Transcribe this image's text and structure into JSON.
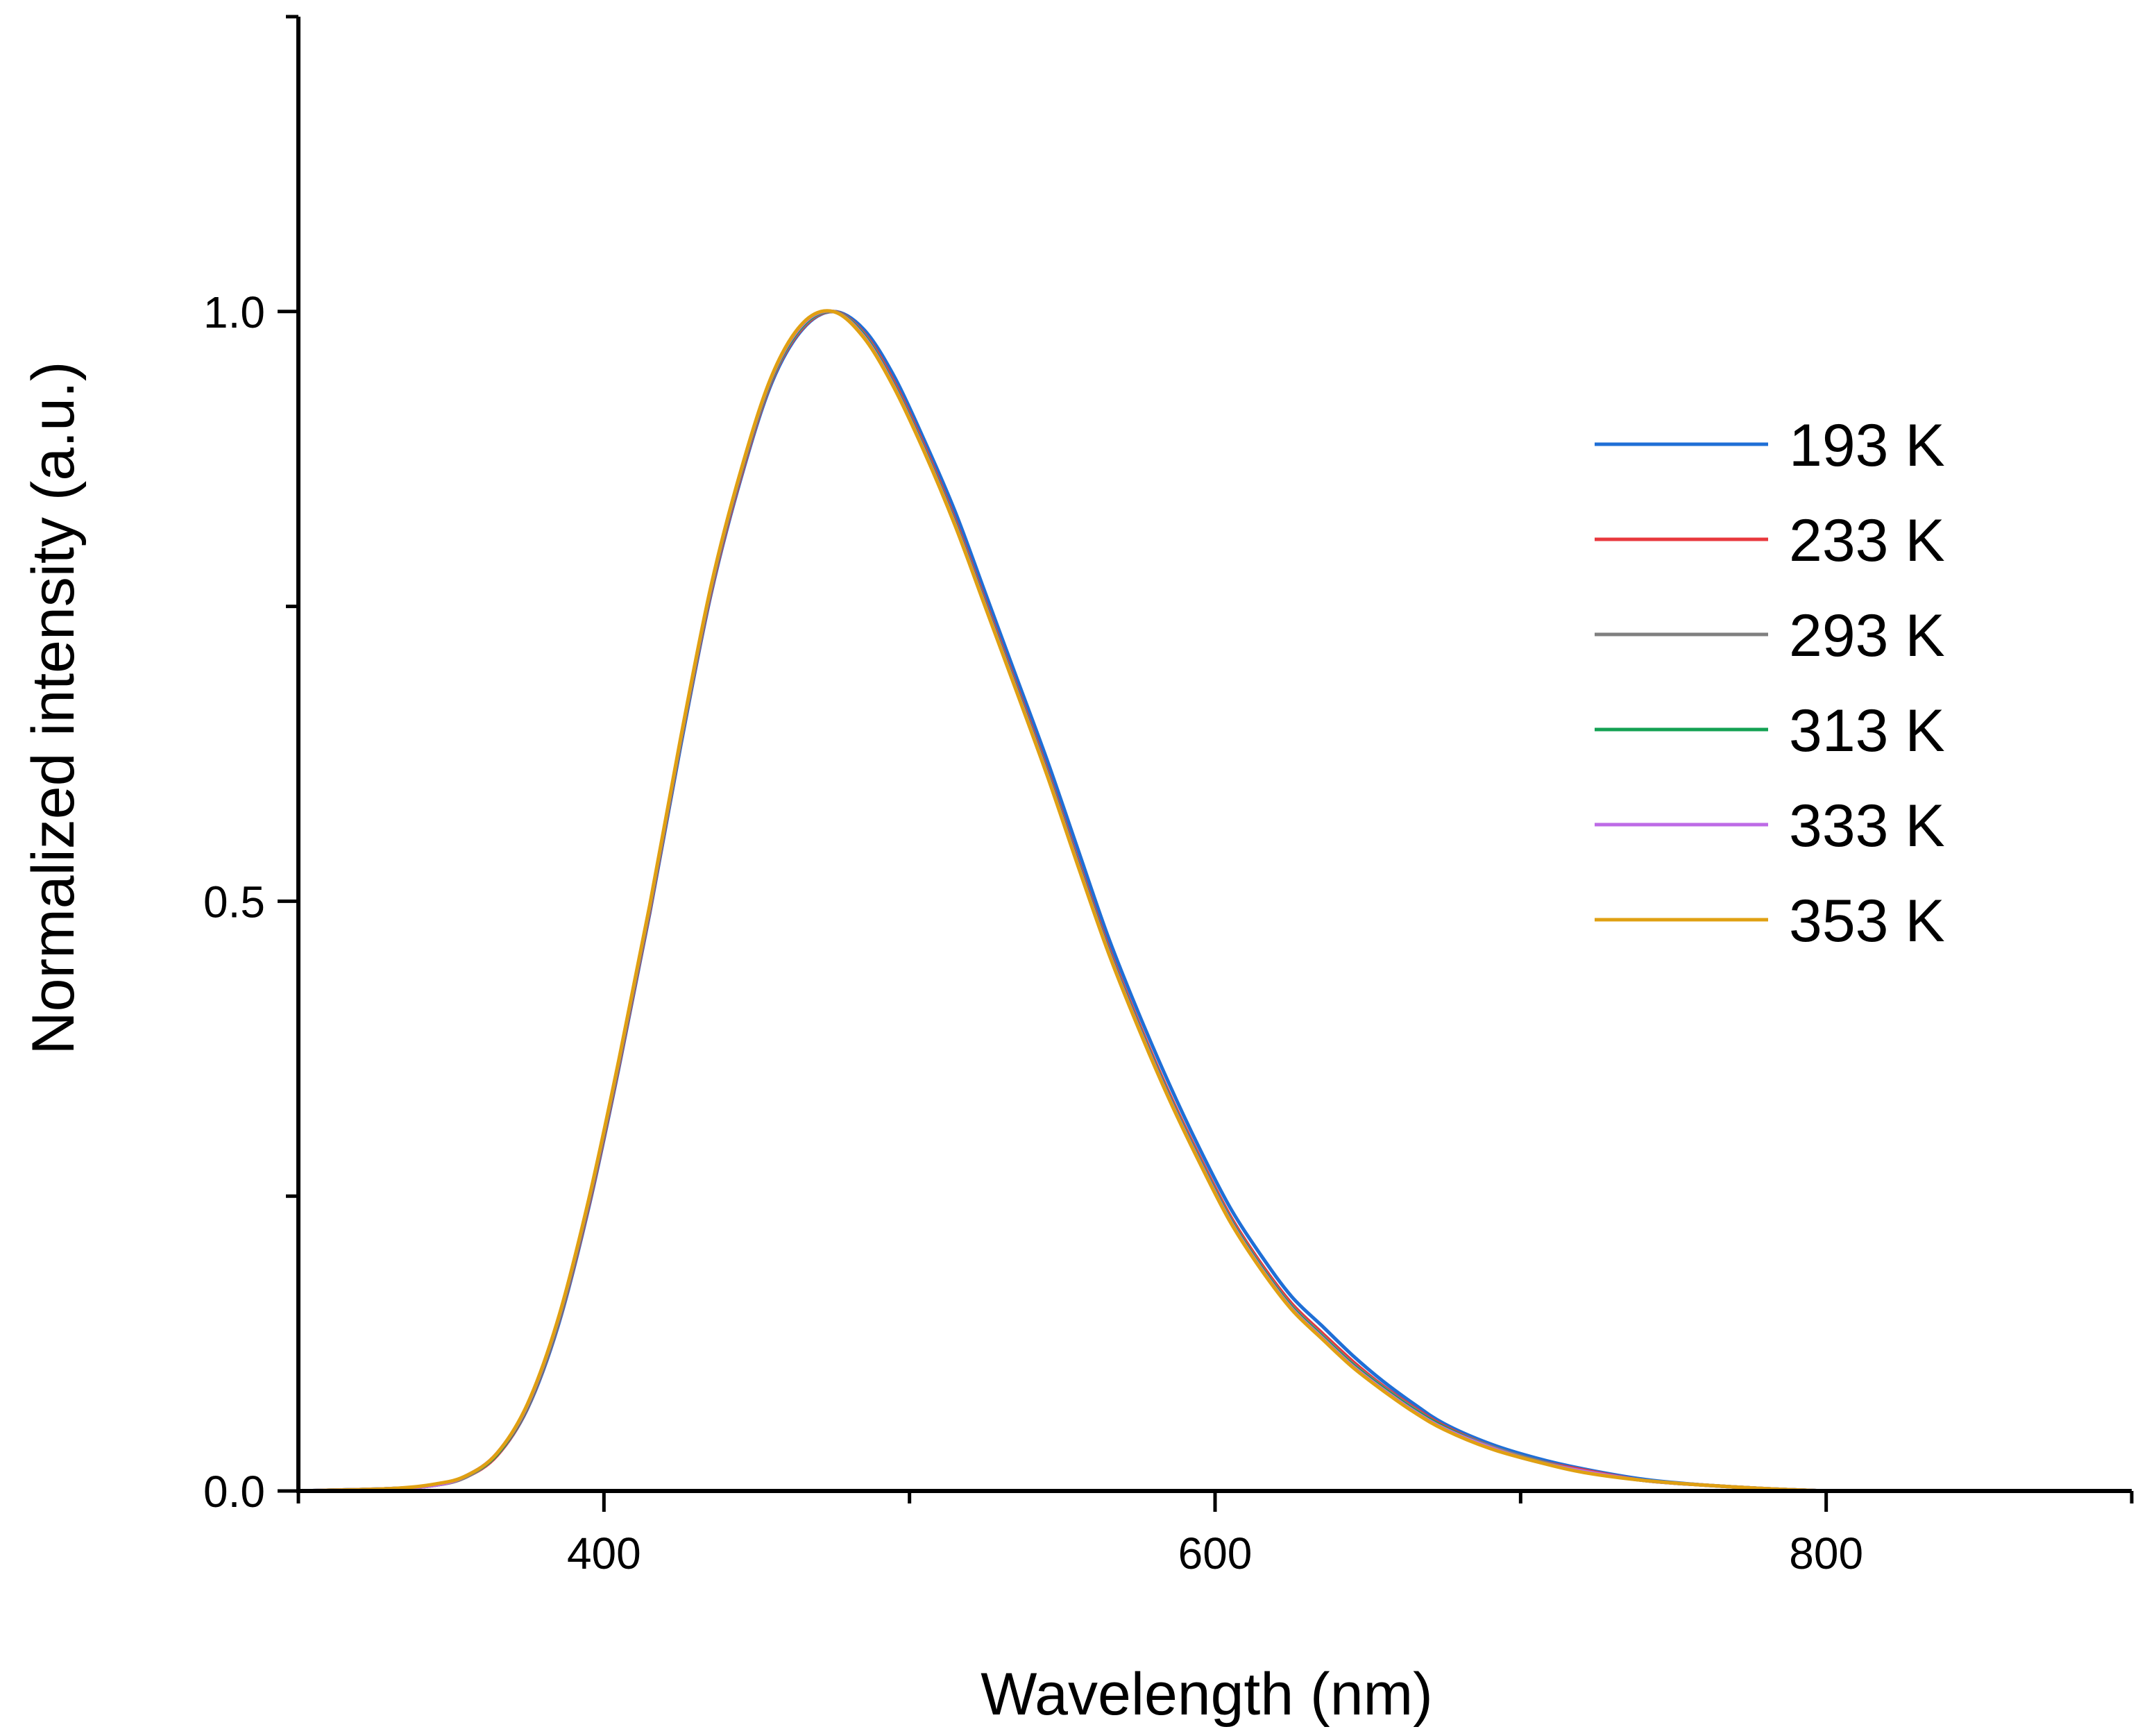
{
  "chart_data": {
    "type": "line",
    "title": "",
    "xlabel": "Wavelength (nm)",
    "ylabel": "Normalized intensity (a.u.)",
    "xlim": [
      300,
      900
    ],
    "ylim": [
      0,
      1.25
    ],
    "x_ticks": [
      400,
      600,
      800
    ],
    "x_tick_labels": [
      "400",
      "600",
      "800"
    ],
    "x_minor_ticks": [
      300,
      500,
      700,
      900
    ],
    "y_ticks": [
      0,
      0.5,
      1.0
    ],
    "y_tick_labels": [
      "0.0",
      "0.5",
      "1.0"
    ],
    "y_minor_ticks": [
      0.25,
      0.75,
      1.25
    ],
    "legend_position": "right",
    "x": [
      300,
      330,
      345,
      355,
      365,
      375,
      385,
      395,
      405,
      415,
      425,
      435,
      445,
      455,
      465,
      475,
      485,
      495,
      505,
      515,
      525,
      535,
      545,
      555,
      565,
      575,
      585,
      595,
      605,
      615,
      625,
      635,
      645,
      655,
      665,
      675,
      690,
      705,
      720,
      740,
      760,
      780,
      800
    ],
    "series": [
      {
        "name": "193 K",
        "color": "#1f6fd6",
        "values": [
          0.0,
          0.002,
          0.005,
          0.012,
          0.03,
          0.07,
          0.14,
          0.24,
          0.36,
          0.49,
          0.63,
          0.76,
          0.86,
          0.94,
          0.985,
          1.0,
          0.985,
          0.945,
          0.89,
          0.83,
          0.76,
          0.69,
          0.62,
          0.545,
          0.47,
          0.405,
          0.345,
          0.29,
          0.24,
          0.2,
          0.165,
          0.14,
          0.115,
          0.093,
          0.074,
          0.057,
          0.04,
          0.028,
          0.019,
          0.01,
          0.005,
          0.002,
          0.0
        ]
      },
      {
        "name": "233 K",
        "color": "#e8383d",
        "values": [
          0.0,
          0.002,
          0.005,
          0.012,
          0.03,
          0.071,
          0.142,
          0.242,
          0.362,
          0.492,
          0.633,
          0.762,
          0.862,
          0.942,
          0.986,
          1.0,
          0.982,
          0.94,
          0.885,
          0.823,
          0.753,
          0.683,
          0.612,
          0.536,
          0.462,
          0.397,
          0.337,
          0.283,
          0.233,
          0.193,
          0.159,
          0.134,
          0.11,
          0.089,
          0.071,
          0.055,
          0.038,
          0.026,
          0.018,
          0.009,
          0.005,
          0.002,
          0.0
        ]
      },
      {
        "name": "293 K",
        "color": "#7f7f7f",
        "values": [
          0.0,
          0.002,
          0.005,
          0.012,
          0.031,
          0.072,
          0.143,
          0.244,
          0.364,
          0.494,
          0.634,
          0.764,
          0.864,
          0.943,
          0.987,
          1.0,
          0.981,
          0.938,
          0.883,
          0.821,
          0.751,
          0.681,
          0.61,
          0.534,
          0.46,
          0.395,
          0.335,
          0.281,
          0.231,
          0.191,
          0.157,
          0.132,
          0.108,
          0.088,
          0.07,
          0.054,
          0.038,
          0.026,
          0.017,
          0.009,
          0.005,
          0.002,
          0.0
        ]
      },
      {
        "name": "313 K",
        "color": "#13a153",
        "values": [
          0.0,
          0.002,
          0.005,
          0.013,
          0.031,
          0.072,
          0.144,
          0.245,
          0.365,
          0.495,
          0.635,
          0.765,
          0.865,
          0.944,
          0.988,
          1.0,
          0.98,
          0.937,
          0.882,
          0.82,
          0.75,
          0.68,
          0.609,
          0.533,
          0.459,
          0.394,
          0.334,
          0.28,
          0.23,
          0.19,
          0.156,
          0.131,
          0.107,
          0.087,
          0.069,
          0.054,
          0.037,
          0.025,
          0.017,
          0.009,
          0.005,
          0.002,
          0.0
        ]
      },
      {
        "name": "333 K",
        "color": "#bd6be6",
        "values": [
          0.0,
          0.002,
          0.005,
          0.013,
          0.032,
          0.073,
          0.145,
          0.246,
          0.366,
          0.496,
          0.636,
          0.766,
          0.866,
          0.945,
          0.989,
          1.0,
          0.979,
          0.936,
          0.881,
          0.819,
          0.749,
          0.679,
          0.608,
          0.532,
          0.458,
          0.393,
          0.333,
          0.279,
          0.229,
          0.189,
          0.155,
          0.13,
          0.106,
          0.086,
          0.068,
          0.053,
          0.037,
          0.025,
          0.017,
          0.009,
          0.005,
          0.002,
          0.0
        ]
      },
      {
        "name": "353 K",
        "color": "#e0a012",
        "values": [
          0.0,
          0.002,
          0.006,
          0.013,
          0.032,
          0.074,
          0.146,
          0.247,
          0.367,
          0.497,
          0.637,
          0.767,
          0.867,
          0.946,
          0.99,
          1.0,
          0.978,
          0.935,
          0.88,
          0.818,
          0.748,
          0.678,
          0.607,
          0.531,
          0.457,
          0.392,
          0.332,
          0.278,
          0.228,
          0.188,
          0.154,
          0.129,
          0.105,
          0.085,
          0.067,
          0.052,
          0.036,
          0.025,
          0.016,
          0.009,
          0.005,
          0.002,
          0.0
        ]
      }
    ]
  }
}
